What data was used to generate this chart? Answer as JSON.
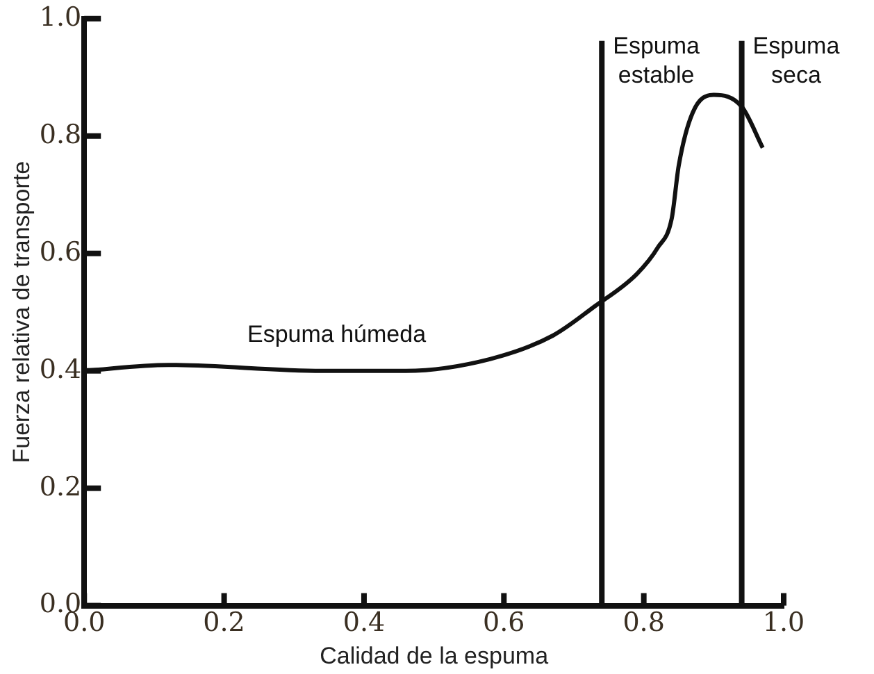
{
  "chart_data": {
    "type": "line",
    "xlabel": "Calidad de la espuma",
    "ylabel": "Fuerza relativa de transporte",
    "x": [
      0,
      0.12,
      0.34,
      0.46,
      0.58,
      0.67,
      0.73,
      0.79,
      0.82,
      0.84,
      0.85,
      0.87,
      0.9,
      0.94,
      0.97
    ],
    "series": [
      {
        "color": "#111111",
        "values": [
          0.4,
          0.41,
          0.4,
          0.4,
          0.42,
          0.46,
          0.51,
          0.565,
          0.61,
          0.66,
          0.75,
          0.84,
          0.87,
          0.85,
          0.78
        ]
      }
    ],
    "xlim": [
      0,
      1
    ],
    "ylim": [
      0,
      1
    ],
    "xticks": [
      {
        "value": 0,
        "label": "0.0"
      },
      0.2,
      0.4,
      0.6,
      0.8,
      {
        "value": 1,
        "label": "1.0"
      }
    ],
    "yticks": [
      {
        "value": 0,
        "label": "0.0"
      },
      0.2,
      0.4,
      0.6,
      0.8,
      {
        "value": 1,
        "label": "1.0"
      }
    ],
    "ref_lines": [
      {
        "axis": "x",
        "value": 0.74,
        "label": "Espuma estable",
        "color": "#111111"
      },
      {
        "axis": "x",
        "value": 0.94,
        "label": "Espuma seca",
        "color": "#111111"
      }
    ],
    "annotations": [
      "Espuma húmeda"
    ],
    "marker": "none",
    "line_style": "solid",
    "legend": false
  }
}
